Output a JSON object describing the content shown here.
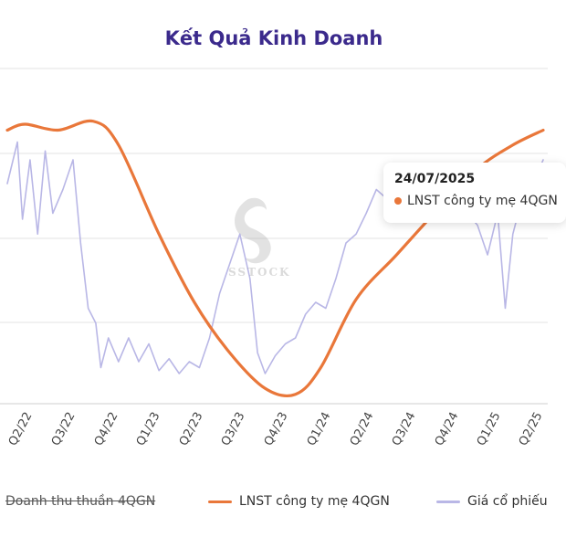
{
  "chart_data": {
    "type": "line",
    "title": "Kết Quả Kinh Doanh",
    "x_tick_labels": [
      "Q2/22",
      "Q3/22",
      "Q4/22",
      "Q1/23",
      "Q2/23",
      "Q3/23",
      "Q4/23",
      "Q1/24",
      "Q2/24",
      "Q3/24",
      "Q4/24",
      "Q1/25",
      "Q2/25"
    ],
    "series": [
      {
        "name": "Doanh thu thuần 4QGN",
        "hidden": true,
        "color": "#999999",
        "values": []
      },
      {
        "name": "LNST công ty mẹ 4QGN",
        "color": "#e9773a",
        "values": [
          {
            "x": 0.0,
            "y": 0.9
          },
          {
            "x": 0.35,
            "y": 0.92
          },
          {
            "x": 1.0,
            "y": 0.9
          },
          {
            "x": 1.7,
            "y": 0.93
          },
          {
            "x": 2.2,
            "y": 0.85
          },
          {
            "x": 3.0,
            "y": 0.55
          },
          {
            "x": 3.7,
            "y": 0.32
          },
          {
            "x": 4.4,
            "y": 0.15
          },
          {
            "x": 5.1,
            "y": 0.03
          },
          {
            "x": 5.7,
            "y": 0.01
          },
          {
            "x": 6.2,
            "y": 0.1
          },
          {
            "x": 6.9,
            "y": 0.33
          },
          {
            "x": 7.7,
            "y": 0.48
          },
          {
            "x": 8.5,
            "y": 0.63
          },
          {
            "x": 9.3,
            "y": 0.77
          },
          {
            "x": 10.0,
            "y": 0.85
          },
          {
            "x": 10.6,
            "y": 0.9
          }
        ]
      },
      {
        "name": "Giá cổ phiếu",
        "color": "#b9b7e6",
        "values": [
          {
            "x": 0.0,
            "y": 0.72
          },
          {
            "x": 0.2,
            "y": 0.86
          },
          {
            "x": 0.3,
            "y": 0.6
          },
          {
            "x": 0.45,
            "y": 0.8
          },
          {
            "x": 0.6,
            "y": 0.55
          },
          {
            "x": 0.75,
            "y": 0.83
          },
          {
            "x": 0.9,
            "y": 0.62
          },
          {
            "x": 1.1,
            "y": 0.7
          },
          {
            "x": 1.3,
            "y": 0.8
          },
          {
            "x": 1.45,
            "y": 0.52
          },
          {
            "x": 1.6,
            "y": 0.3
          },
          {
            "x": 1.75,
            "y": 0.25
          },
          {
            "x": 1.85,
            "y": 0.1
          },
          {
            "x": 2.0,
            "y": 0.2
          },
          {
            "x": 2.2,
            "y": 0.12
          },
          {
            "x": 2.4,
            "y": 0.2
          },
          {
            "x": 2.6,
            "y": 0.12
          },
          {
            "x": 2.8,
            "y": 0.18
          },
          {
            "x": 3.0,
            "y": 0.09
          },
          {
            "x": 3.2,
            "y": 0.13
          },
          {
            "x": 3.4,
            "y": 0.08
          },
          {
            "x": 3.6,
            "y": 0.12
          },
          {
            "x": 3.8,
            "y": 0.1
          },
          {
            "x": 4.0,
            "y": 0.2
          },
          {
            "x": 4.2,
            "y": 0.35
          },
          {
            "x": 4.4,
            "y": 0.45
          },
          {
            "x": 4.6,
            "y": 0.55
          },
          {
            "x": 4.8,
            "y": 0.4
          },
          {
            "x": 4.95,
            "y": 0.15
          },
          {
            "x": 5.1,
            "y": 0.08
          },
          {
            "x": 5.3,
            "y": 0.14
          },
          {
            "x": 5.5,
            "y": 0.18
          },
          {
            "x": 5.7,
            "y": 0.2
          },
          {
            "x": 5.9,
            "y": 0.28
          },
          {
            "x": 6.1,
            "y": 0.32
          },
          {
            "x": 6.3,
            "y": 0.3
          },
          {
            "x": 6.5,
            "y": 0.4
          },
          {
            "x": 6.7,
            "y": 0.52
          },
          {
            "x": 6.9,
            "y": 0.55
          },
          {
            "x": 7.1,
            "y": 0.62
          },
          {
            "x": 7.3,
            "y": 0.7
          },
          {
            "x": 7.5,
            "y": 0.67
          },
          {
            "x": 7.7,
            "y": 0.7
          },
          {
            "x": 7.9,
            "y": 0.65
          },
          {
            "x": 8.1,
            "y": 0.6
          },
          {
            "x": 8.3,
            "y": 0.66
          },
          {
            "x": 8.5,
            "y": 0.62
          },
          {
            "x": 8.7,
            "y": 0.68
          },
          {
            "x": 8.9,
            "y": 0.6
          },
          {
            "x": 9.1,
            "y": 0.62
          },
          {
            "x": 9.3,
            "y": 0.58
          },
          {
            "x": 9.5,
            "y": 0.48
          },
          {
            "x": 9.7,
            "y": 0.62
          },
          {
            "x": 9.85,
            "y": 0.3
          },
          {
            "x": 10.0,
            "y": 0.55
          },
          {
            "x": 10.2,
            "y": 0.68
          },
          {
            "x": 10.4,
            "y": 0.72
          },
          {
            "x": 10.6,
            "y": 0.8
          }
        ]
      }
    ],
    "grid": "horizontal",
    "legend": "bottom"
  },
  "tooltip": {
    "date": "24/07/2025",
    "label": "LNST công ty mẹ 4QGN",
    "color": "#e9773a"
  },
  "watermark": "SSTOCK"
}
